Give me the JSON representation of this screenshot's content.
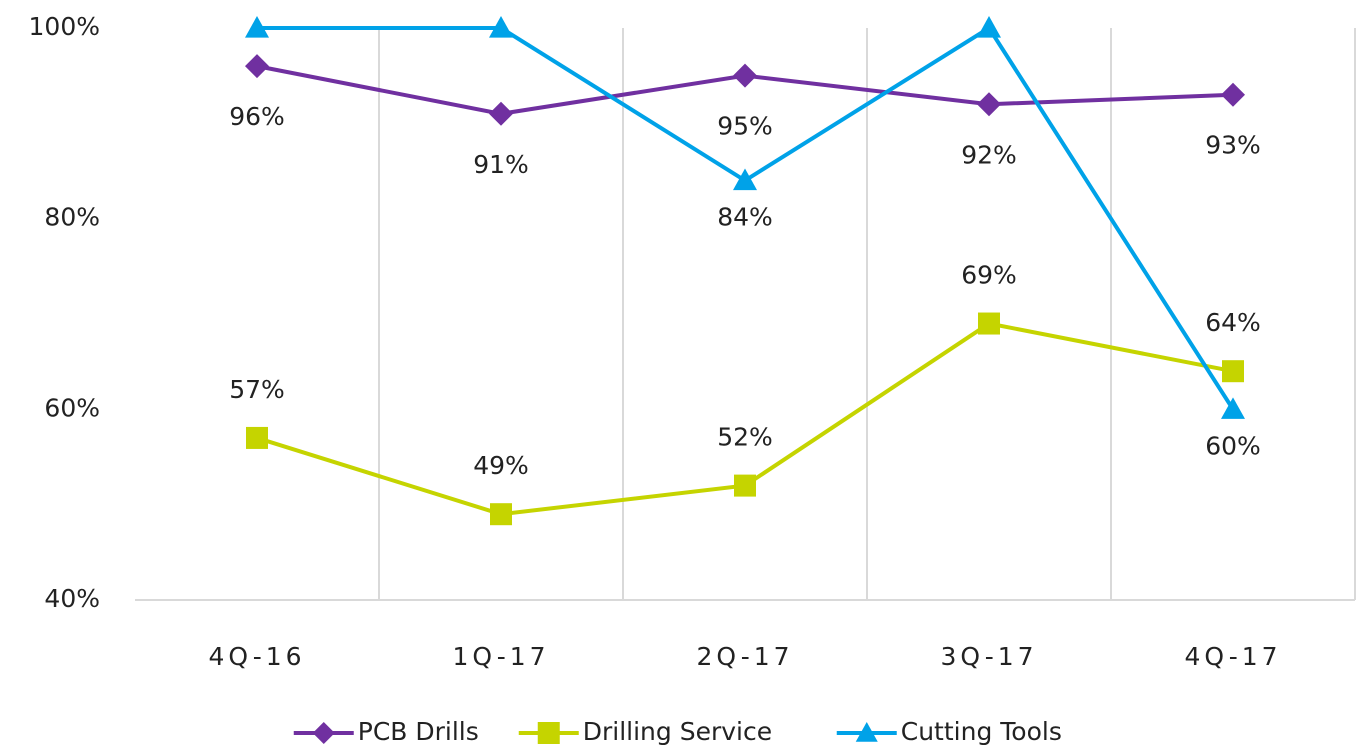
{
  "chart_data": {
    "type": "line",
    "categories": [
      "4Q-16",
      "1Q-17",
      "2Q-17",
      "3Q-17",
      "4Q-17"
    ],
    "series": [
      {
        "name": "PCB Drills",
        "color": "#7030a0",
        "marker": "diamond",
        "values": [
          96,
          91,
          95,
          92,
          93
        ],
        "value_labels": [
          "96%",
          "91%",
          "95%",
          "92%",
          "93%"
        ],
        "label_position": "below"
      },
      {
        "name": "Drilling Service",
        "color": "#c5d400",
        "marker": "square",
        "values": [
          57,
          49,
          52,
          69,
          64
        ],
        "value_labels": [
          "57%",
          "49%",
          "52%",
          "69%",
          "64%"
        ],
        "label_position": "above"
      },
      {
        "name": "Cutting Tools",
        "color": "#00a2e8",
        "marker": "triangle",
        "values": [
          100,
          100,
          84,
          100,
          60
        ],
        "value_labels": [
          null,
          null,
          "84%",
          null,
          "60%"
        ],
        "label_position": "below"
      }
    ],
    "ylim": [
      40,
      100
    ],
    "yticks": [
      {
        "value": 40,
        "label": "40%"
      },
      {
        "value": 60,
        "label": "60%"
      },
      {
        "value": 80,
        "label": "80%"
      },
      {
        "value": 100,
        "label": "100%"
      }
    ],
    "grid": "vertical",
    "legend": "bottom"
  }
}
